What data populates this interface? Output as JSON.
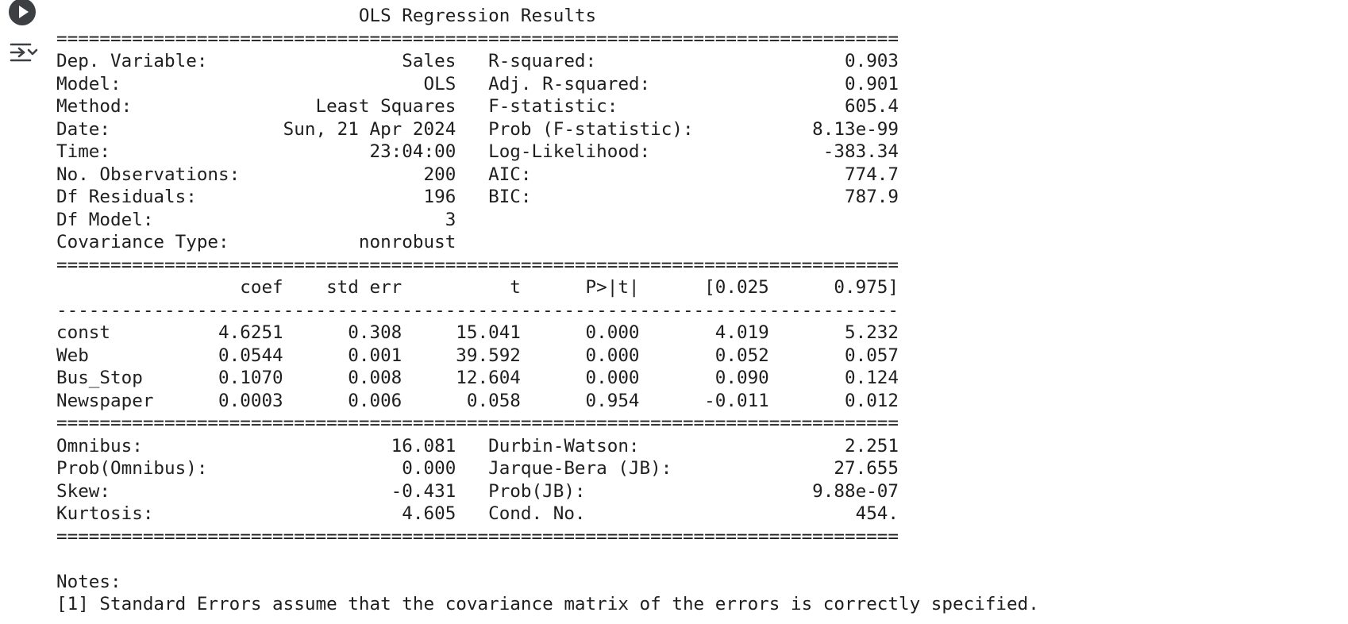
{
  "cell": {
    "run_button": "run-cell",
    "output_toggle_icon": "output-actions-icon"
  },
  "output": {
    "title": "                            OLS Regression Results                            ",
    "sep_double": "==============================================================================",
    "sep_single": "------------------------------------------------------------------------------",
    "model_info": [
      "Dep. Variable:                  Sales   R-squared:                       0.903",
      "Model:                            OLS   Adj. R-squared:                  0.901",
      "Method:                 Least Squares   F-statistic:                     605.4",
      "Date:                Sun, 21 Apr 2024   Prob (F-statistic):           8.13e-99",
      "Time:                        23:04:00   Log-Likelihood:                -383.34",
      "No. Observations:                 200   AIC:                             774.7",
      "Df Residuals:                     196   BIC:                             787.9",
      "Df Model:                           3                                         ",
      "Covariance Type:            nonrobust                                         "
    ],
    "coef_header": "                 coef    std err          t      P>|t|      [0.025      0.975]",
    "coef_rows": [
      "const          4.6251      0.308     15.041      0.000       4.019       5.232",
      "Web            0.0544      0.001     39.592      0.000       0.052       0.057",
      "Bus_Stop       0.1070      0.008     12.604      0.000       0.090       0.124",
      "Newspaper      0.0003      0.006      0.058      0.954      -0.011       0.012"
    ],
    "diagnostics": [
      "Omnibus:                       16.081   Durbin-Watson:                   2.251",
      "Prob(Omnibus):                  0.000   Jarque-Bera (JB):               27.655",
      "Skew:                          -0.431   Prob(JB):                     9.88e-07",
      "Kurtosis:                       4.605   Cond. No.                         454."
    ],
    "notes_title": "Notes:",
    "notes": [
      "[1] Standard Errors assume that the covariance matrix of the errors is correctly specified."
    ]
  }
}
